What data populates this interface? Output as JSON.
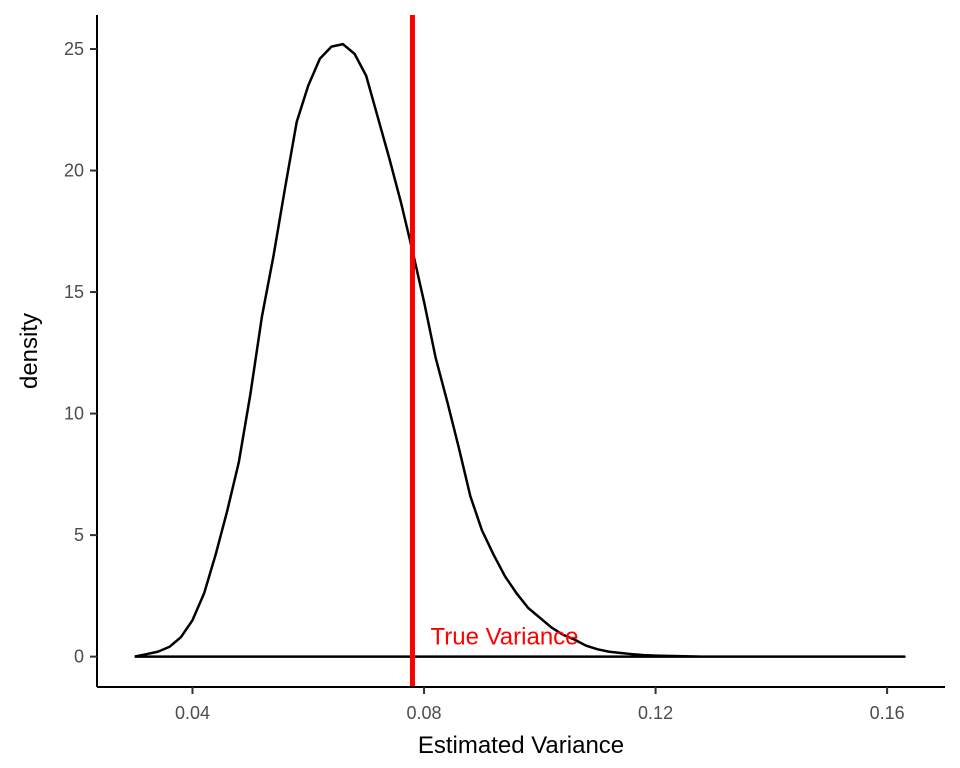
{
  "chart_data": {
    "type": "density",
    "xlabel": "Estimated Variance",
    "ylabel": "density",
    "xlim": [
      0.0235,
      0.17
    ],
    "ylim": [
      -1.25,
      26.4
    ],
    "x_ticks": [
      0.04,
      0.08,
      0.12,
      0.16
    ],
    "x_tick_labels": [
      "0.04",
      "0.08",
      "0.12",
      "0.16"
    ],
    "y_ticks": [
      0,
      5,
      10,
      15,
      20,
      25
    ],
    "y_tick_labels": [
      "0",
      "5",
      "10",
      "15",
      "20",
      "25"
    ],
    "grid": false,
    "line_color": "#000000",
    "density_curve": {
      "x": [
        0.03,
        0.032,
        0.034,
        0.036,
        0.038,
        0.04,
        0.042,
        0.044,
        0.046,
        0.048,
        0.05,
        0.052,
        0.054,
        0.056,
        0.058,
        0.06,
        0.062,
        0.064,
        0.066,
        0.068,
        0.07,
        0.072,
        0.074,
        0.076,
        0.078,
        0.08,
        0.082,
        0.084,
        0.086,
        0.088,
        0.09,
        0.092,
        0.094,
        0.096,
        0.098,
        0.1,
        0.102,
        0.104,
        0.106,
        0.108,
        0.11,
        0.112,
        0.114,
        0.116,
        0.118,
        0.12,
        0.122,
        0.124,
        0.126,
        0.128,
        0.13,
        0.132,
        0.134,
        0.136,
        0.138,
        0.14,
        0.142,
        0.144,
        0.146,
        0.148,
        0.15,
        0.152,
        0.154,
        0.156,
        0.158,
        0.16,
        0.163
      ],
      "y": [
        0.0,
        0.1,
        0.2,
        0.4,
        0.8,
        1.5,
        2.6,
        4.2,
        6.0,
        8.0,
        10.8,
        14.0,
        16.5,
        19.3,
        22.0,
        23.5,
        24.6,
        25.1,
        25.2,
        24.8,
        23.9,
        22.2,
        20.5,
        18.7,
        16.7,
        14.6,
        12.3,
        10.5,
        8.6,
        6.6,
        5.2,
        4.2,
        3.3,
        2.6,
        2.0,
        1.6,
        1.2,
        0.9,
        0.7,
        0.45,
        0.3,
        0.2,
        0.15,
        0.1,
        0.06,
        0.04,
        0.03,
        0.02,
        0.01,
        0.0,
        0.0,
        0.0,
        0.0,
        0.0,
        0.0,
        0.0,
        0.0,
        0.0,
        0.0,
        0.0,
        0.0,
        0.0,
        0.0,
        0.0,
        0.0,
        0.0,
        0.0
      ],
      "x_offset_note": ""
    },
    "reference_line": {
      "x": 0.078,
      "color": "#ff0000",
      "label": "True Variance"
    }
  }
}
